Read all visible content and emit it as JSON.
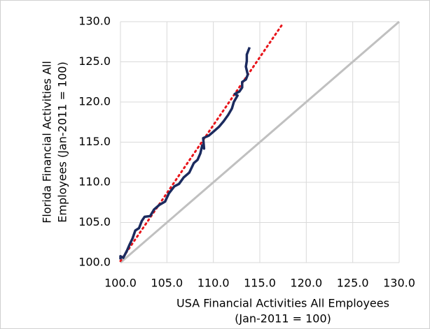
{
  "chart_data": {
    "type": "line",
    "xlabel": [
      "USA Financial Activities All Employees",
      "(Jan-2011 = 100)"
    ],
    "ylabel": [
      "Florida Financial Activities All",
      "Employees (Jan-2011 = 100)"
    ],
    "xlim": [
      100,
      130
    ],
    "ylim": [
      100,
      130
    ],
    "xticks": [
      {
        "value": 100,
        "label": "100.0"
      },
      {
        "value": 105,
        "label": "105.0"
      },
      {
        "value": 110,
        "label": "110.0"
      },
      {
        "value": 115,
        "label": "115.0"
      },
      {
        "value": 120,
        "label": "120.0"
      },
      {
        "value": 125,
        "label": "125.0"
      },
      {
        "value": 130,
        "label": "130.0"
      }
    ],
    "yticks": [
      {
        "value": 100,
        "label": "100.0"
      },
      {
        "value": 105,
        "label": "105.0"
      },
      {
        "value": 110,
        "label": "110.0"
      },
      {
        "value": 115,
        "label": "115.0"
      },
      {
        "value": 120,
        "label": "120.0"
      },
      {
        "value": 125,
        "label": "125.0"
      },
      {
        "value": 130,
        "label": "130.0"
      }
    ],
    "grid": true,
    "series": [
      {
        "color": "#1b2a5e",
        "dash": "solid",
        "x": [
          100.0,
          100.0,
          100.3,
          100.7,
          101.0,
          101.3,
          101.6,
          102.0,
          102.3,
          102.6,
          103.2,
          103.6,
          104.2,
          104.8,
          105.2,
          105.8,
          106.3,
          106.8,
          107.4,
          107.9,
          108.3,
          108.6,
          108.8,
          109.0,
          108.9,
          109.5,
          110.0,
          110.6,
          111.1,
          111.6,
          112.0,
          112.2,
          112.6,
          112.3,
          112.8,
          113.1,
          113.1,
          113.5,
          113.7,
          113.5,
          113.6,
          113.6,
          113.9
        ],
        "values": [
          100.4,
          100.8,
          100.6,
          101.5,
          102.3,
          103.0,
          104.0,
          104.3,
          105.2,
          105.7,
          105.8,
          106.6,
          107.2,
          107.6,
          108.6,
          109.5,
          109.8,
          110.6,
          111.2,
          112.4,
          112.8,
          113.6,
          114.6,
          114.2,
          115.5,
          115.8,
          116.3,
          116.9,
          117.6,
          118.4,
          119.2,
          120.0,
          120.8,
          121.0,
          121.3,
          121.8,
          122.5,
          122.8,
          123.4,
          124.4,
          125.1,
          125.9,
          126.8
        ]
      },
      {
        "color": "#e8141a",
        "dash": "dotted",
        "x": [
          100,
          117.5
        ],
        "values": [
          100.2,
          129.8
        ]
      },
      {
        "color": "#c0c0c0",
        "dash": "solid",
        "x": [
          100,
          130
        ],
        "values": [
          100,
          130
        ]
      }
    ]
  }
}
